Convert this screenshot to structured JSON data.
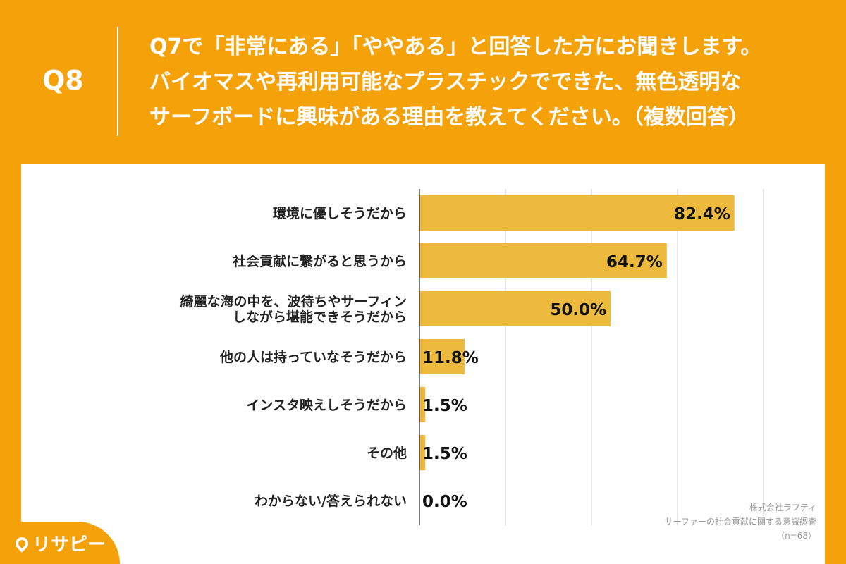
{
  "header": {
    "qnum": "Q8",
    "lines": [
      "Q7で「非常にある」「ややある」と回答した方にお聞きします。",
      "バイオマスや再利用可能なプラスチックでできた、無色透明な",
      "サーフボードに興味がある理由を教えてください。（複数回答）"
    ]
  },
  "chart_data": {
    "type": "bar",
    "orientation": "horizontal",
    "categories": [
      [
        "環境に優しそうだから"
      ],
      [
        "社会貢献に繋がると思うから"
      ],
      [
        "綺麗な海の中を、波待ちやサーフィン",
        "しながら堪能できそうだから"
      ],
      [
        "他の人は持っていなそうだから"
      ],
      [
        "インスタ映えしそうだから"
      ],
      [
        "その他"
      ],
      [
        "わからない/答えられない"
      ]
    ],
    "values": [
      82.4,
      64.7,
      50.0,
      11.8,
      1.5,
      1.5,
      0.0
    ],
    "value_labels": [
      "82.4%",
      "64.7%",
      "50.0%",
      "11.8%",
      "1.5%",
      "1.5%",
      "0.0%"
    ],
    "xlim": [
      0,
      90
    ],
    "grid_step": 22.5,
    "bar_color": "#EDBA3D",
    "grid_color": "#CCCCCC"
  },
  "logo": {
    "text": "リサピー"
  },
  "credit": {
    "company": "株式会社ラフティ",
    "survey": "サーファーの社会貢献に関する意識調査",
    "n": "（n=68）"
  }
}
